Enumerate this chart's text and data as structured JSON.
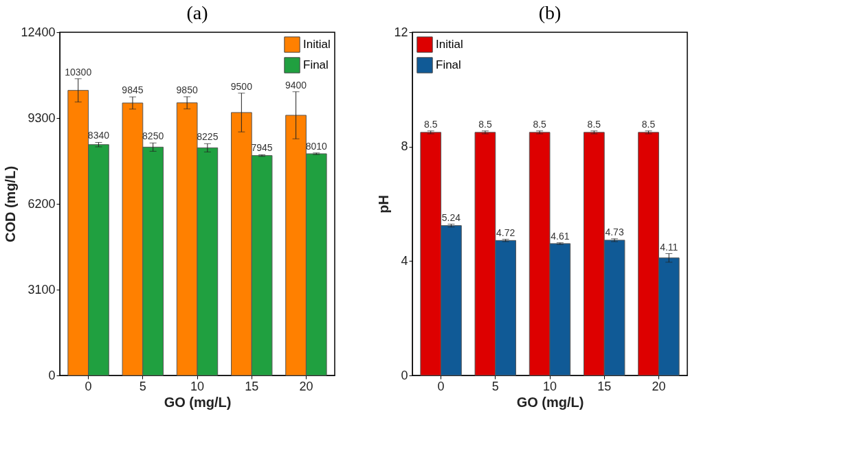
{
  "chart_data": [
    {
      "type": "bar",
      "title": "(a)",
      "xlabel": "GO (mg/L)",
      "ylabel": "COD (mg/L)",
      "categories": [
        "0",
        "5",
        "10",
        "15",
        "20"
      ],
      "ylim": [
        0,
        12400
      ],
      "yticks": [
        0,
        3100,
        6200,
        9300,
        12400
      ],
      "legend": "top right",
      "grid": false,
      "data_labels": true,
      "series": [
        {
          "name": "Initial",
          "color": "#ff8000",
          "values": [
            10300,
            9845,
            9850,
            9500,
            9400
          ],
          "errors": [
            420,
            220,
            220,
            700,
            850
          ]
        },
        {
          "name": "Final",
          "color": "#20a040",
          "values": [
            8340,
            8250,
            8225,
            7945,
            8010
          ],
          "errors": [
            80,
            150,
            150,
            30,
            30
          ]
        }
      ]
    },
    {
      "type": "bar",
      "title": "(b)",
      "xlabel": "GO (mg/L)",
      "ylabel": "pH",
      "categories": [
        "0",
        "5",
        "10",
        "15",
        "20"
      ],
      "ylim": [
        0,
        12
      ],
      "yticks": [
        0,
        4,
        8,
        12
      ],
      "legend": "top left",
      "grid": false,
      "data_labels": true,
      "series": [
        {
          "name": "Initial",
          "color": "#dd0000",
          "values": [
            8.5,
            8.5,
            8.5,
            8.5,
            8.5
          ],
          "errors": [
            0.05,
            0.05,
            0.05,
            0.05,
            0.05
          ]
        },
        {
          "name": "Final",
          "color": "#105a96",
          "values": [
            5.24,
            4.72,
            4.61,
            4.73,
            4.11
          ],
          "errors": [
            0.05,
            0.04,
            0.03,
            0.05,
            0.15
          ]
        }
      ]
    }
  ]
}
